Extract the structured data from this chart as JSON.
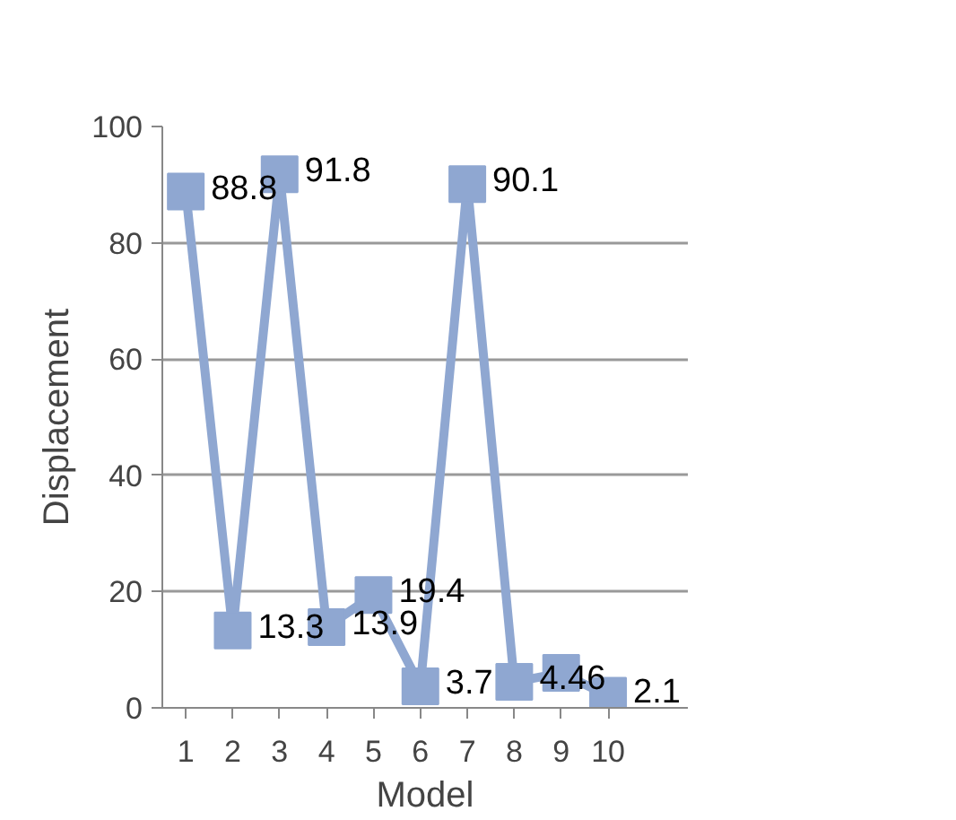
{
  "chart_data": {
    "type": "line",
    "xlabel": "Model",
    "ylabel": "Displacement",
    "categories": [
      "1",
      "2",
      "3",
      "4",
      "5",
      "6",
      "7",
      "8",
      "9",
      "10"
    ],
    "series": [
      {
        "color": "#8fa7d1",
        "values": [
          88.8,
          13.3,
          91.8,
          13.9,
          19.4,
          3.7,
          90.1,
          4.46,
          6,
          2.1
        ],
        "value_labels": [
          "88.8",
          "13.3",
          "91.8",
          "13.9",
          "19.4",
          "3.7",
          "90.1",
          "4.46",
          null,
          "2.1"
        ]
      }
    ],
    "ylim": [
      0,
      100
    ],
    "yticks": [
      0,
      20,
      40,
      60,
      80,
      100
    ],
    "grid": "y",
    "marker": "square",
    "line_style": "solid"
  }
}
